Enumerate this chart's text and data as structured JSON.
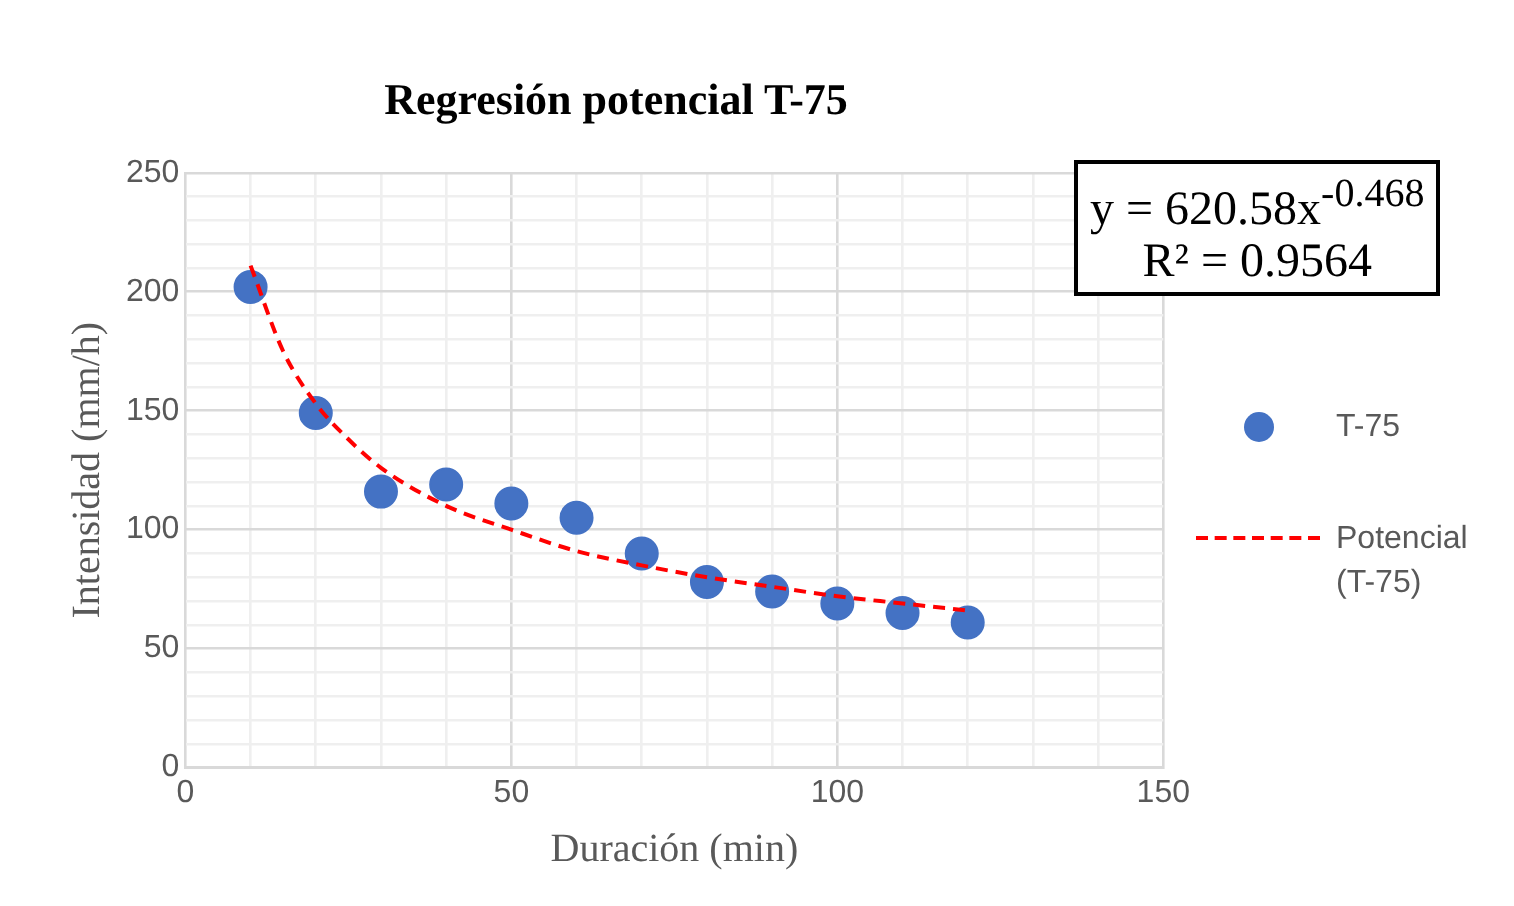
{
  "chart_data": {
    "type": "scatter",
    "title": "Regresión potencial T-75",
    "xlabel": "Duración (min)",
    "ylabel": "Intensidad (mm/h)",
    "xlim": [
      0,
      150
    ],
    "xticks": [
      0,
      {
        "value": 10,
        "label": null
      },
      {
        "value": 20,
        "label": null
      },
      {
        "value": 30,
        "label": null
      },
      {
        "value": 40,
        "label": null
      },
      50,
      {
        "value": 60,
        "label": null
      },
      {
        "value": 70,
        "label": null
      },
      {
        "value": 80,
        "label": null
      },
      {
        "value": 90,
        "label": null
      },
      100,
      {
        "value": 110,
        "label": null
      },
      {
        "value": 120,
        "label": null
      },
      {
        "value": 130,
        "label": null
      },
      {
        "value": 140,
        "label": null
      },
      150
    ],
    "ylim": [
      0,
      250
    ],
    "yticks": [
      0,
      {
        "value": 10,
        "label": null
      },
      {
        "value": 20,
        "label": null
      },
      {
        "value": 30,
        "label": null
      },
      {
        "value": 40,
        "label": null
      },
      50,
      {
        "value": 60,
        "label": null
      },
      {
        "value": 70,
        "label": null
      },
      {
        "value": 80,
        "label": null
      },
      {
        "value": 90,
        "label": null
      },
      100,
      {
        "value": 110,
        "label": null
      },
      {
        "value": 120,
        "label": null
      },
      {
        "value": 130,
        "label": null
      },
      {
        "value": 140,
        "label": null
      },
      150,
      {
        "value": 160,
        "label": null
      },
      {
        "value": 170,
        "label": null
      },
      {
        "value": 180,
        "label": null
      },
      {
        "value": 190,
        "label": null
      },
      200,
      {
        "value": 210,
        "label": null
      },
      {
        "value": 220,
        "label": null
      },
      {
        "value": 230,
        "label": null
      },
      {
        "value": 240,
        "label": null
      },
      250
    ],
    "grid": true,
    "legend": "right",
    "series": [
      {
        "name": "T-75",
        "marker": "circle",
        "color": "#4472c4",
        "x": [
          10,
          20,
          30,
          40,
          50,
          60,
          70,
          80,
          90,
          100,
          110,
          120
        ],
        "values": [
          202,
          149,
          116,
          119,
          111,
          105,
          90,
          78,
          74,
          69,
          65,
          61
        ]
      },
      {
        "name": "Potencial (T-75)",
        "type": "line",
        "marker": "none",
        "line_style": "dashed",
        "color": "#ff0000",
        "x": [
          10,
          15,
          20,
          25,
          30,
          40,
          50,
          60,
          70,
          80,
          90,
          100,
          110,
          120
        ],
        "values": [
          211,
          175,
          153,
          138,
          126,
          110,
          100,
          91,
          85,
          80,
          76,
          72,
          69,
          66
        ]
      }
    ],
    "annotations": [
      "y = 620.58x$^{-0.468}$",
      "R² = 0.9564"
    ]
  }
}
